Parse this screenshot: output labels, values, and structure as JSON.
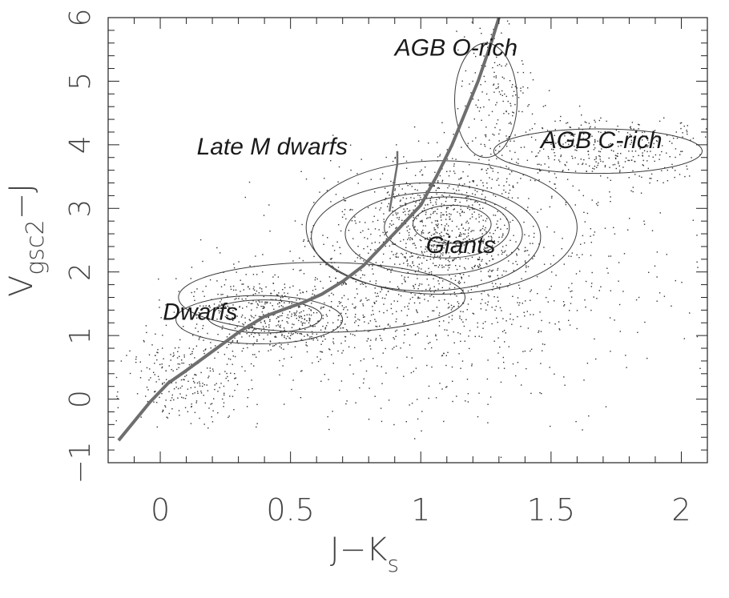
{
  "chart_data": {
    "type": "scatter",
    "title": "",
    "xlabel": "J−K",
    "xlabel_sub": "s",
    "ylabel": "V",
    "ylabel_sub": "gsc2",
    "ylabel_suffix": "−J",
    "xlim": [
      -0.2,
      2.1
    ],
    "ylim": [
      -1,
      6
    ],
    "xticks": [
      0,
      0.5,
      1,
      1.5,
      2
    ],
    "xtick_labels": [
      "0",
      "0.5",
      "1",
      "1.5",
      "2"
    ],
    "yticks": [
      -1,
      0,
      1,
      2,
      3,
      4,
      5,
      6
    ],
    "ytick_labels": [
      "−1",
      "0",
      "1",
      "2",
      "3",
      "4",
      "5",
      "6"
    ],
    "grid": false,
    "annotations": [
      {
        "text": "AGB O-rich",
        "x": 0.9,
        "y": 5.4
      },
      {
        "text": "AGB C-rich",
        "x": 1.46,
        "y": 3.95
      },
      {
        "text": "Late M dwarfs",
        "x": 0.14,
        "y": 3.85
      },
      {
        "text": "Giants",
        "x": 1.02,
        "y": 2.3
      },
      {
        "text": "Dwarfs",
        "x": 0.01,
        "y": 1.25
      }
    ],
    "series": [
      {
        "kind": "line",
        "x": [
          -0.16,
          -0.1,
          -0.04,
          0.03,
          0.1,
          0.2,
          0.3,
          0.4,
          0.5,
          0.55,
          0.62,
          0.7,
          0.78,
          0.85,
          0.92,
          1.0,
          1.06,
          1.12,
          1.17,
          1.22,
          1.27,
          1.3
        ],
        "y": [
          -0.65,
          -0.35,
          -0.05,
          0.25,
          0.45,
          0.75,
          1.05,
          1.3,
          1.45,
          1.52,
          1.65,
          1.85,
          2.1,
          2.4,
          2.7,
          3.05,
          3.5,
          4.0,
          4.5,
          5.0,
          5.6,
          6.0
        ]
      },
      {
        "kind": "line",
        "x": [
          0.88,
          0.89,
          0.9,
          0.91,
          0.91
        ],
        "y": [
          2.95,
          3.2,
          3.45,
          3.7,
          3.9
        ]
      }
    ],
    "density_contours": [
      {
        "cx": 1.08,
        "cy": 2.7,
        "rx": 0.52,
        "ry": 1.05
      },
      {
        "cx": 1.02,
        "cy": 2.55,
        "rx": 0.44,
        "ry": 0.85
      },
      {
        "cx": 1.05,
        "cy": 2.6,
        "rx": 0.34,
        "ry": 0.65
      },
      {
        "cx": 1.1,
        "cy": 2.7,
        "rx": 0.24,
        "ry": 0.48
      },
      {
        "cx": 1.12,
        "cy": 2.75,
        "rx": 0.15,
        "ry": 0.3
      },
      {
        "cx": 0.38,
        "cy": 1.25,
        "rx": 0.32,
        "ry": 0.38
      },
      {
        "cx": 0.4,
        "cy": 1.3,
        "rx": 0.22,
        "ry": 0.26
      },
      {
        "cx": 0.62,
        "cy": 1.6,
        "rx": 0.55,
        "ry": 0.55
      },
      {
        "cx": 1.25,
        "cy": 4.7,
        "rx": 0.12,
        "ry": 0.9
      },
      {
        "cx": 1.68,
        "cy": 3.9,
        "rx": 0.4,
        "ry": 0.35
      }
    ]
  }
}
